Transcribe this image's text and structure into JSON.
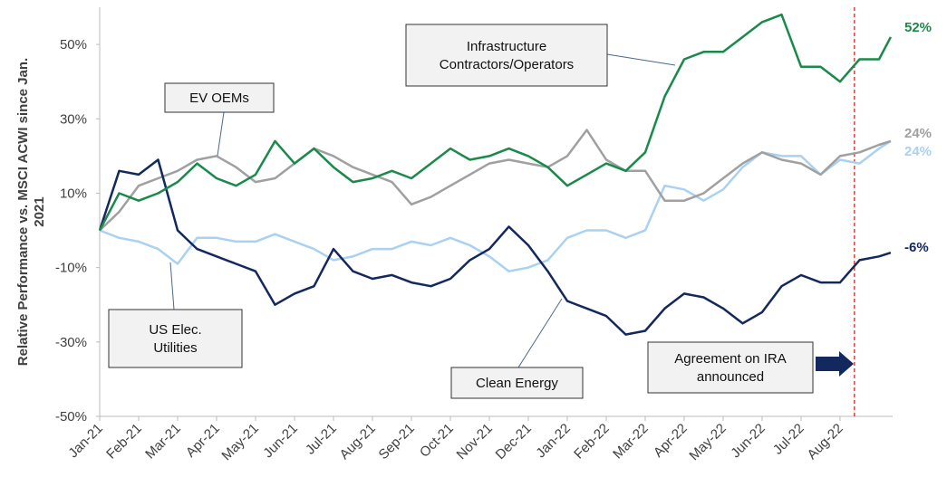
{
  "chart_data": {
    "type": "line",
    "y_label": [
      "Relative Performance vs. MSCI ACWI since Jan.",
      "2021"
    ],
    "x": [
      0,
      0.5,
      1,
      1.5,
      2,
      2.5,
      3,
      3.5,
      4,
      4.5,
      5,
      5.5,
      6,
      6.5,
      7,
      7.5,
      8,
      8.5,
      9,
      9.5,
      10,
      10.5,
      11,
      11.5,
      12,
      12.5,
      13,
      13.5,
      14,
      14.5,
      15,
      15.5,
      16,
      16.5,
      17,
      17.5,
      18,
      18.5,
      19,
      19.5,
      20,
      20.3
    ],
    "xlim": [
      0,
      20.35
    ],
    "xticks": [
      {
        "value": 0,
        "label": "Jan-21"
      },
      {
        "value": 1,
        "label": "Feb-21"
      },
      {
        "value": 2,
        "label": "Mar-21"
      },
      {
        "value": 3,
        "label": "Apr-21"
      },
      {
        "value": 4,
        "label": "May-21"
      },
      {
        "value": 5,
        "label": "Jun-21"
      },
      {
        "value": 6,
        "label": "Jul-21"
      },
      {
        "value": 7,
        "label": "Aug-21"
      },
      {
        "value": 8,
        "label": "Sep-21"
      },
      {
        "value": 9,
        "label": "Oct-21"
      },
      {
        "value": 10,
        "label": "Nov-21"
      },
      {
        "value": 11,
        "label": "Dec-21"
      },
      {
        "value": 12,
        "label": "Jan-22"
      },
      {
        "value": 13,
        "label": "Feb-22"
      },
      {
        "value": 14,
        "label": "Mar-22"
      },
      {
        "value": 15,
        "label": "Apr-22"
      },
      {
        "value": 16,
        "label": "May-22"
      },
      {
        "value": 17,
        "label": "Jun-22"
      },
      {
        "value": 18,
        "label": "Jul-22"
      },
      {
        "value": 19,
        "label": "Aug-22"
      }
    ],
    "ylim": [
      -50,
      60
    ],
    "yticks": [
      {
        "value": 50,
        "label": "50%"
      },
      {
        "value": 30,
        "label": "30%"
      },
      {
        "value": 10,
        "label": "10%"
      },
      {
        "value": -10,
        "label": "-10%"
      },
      {
        "value": -30,
        "label": "-30%"
      },
      {
        "value": -50,
        "label": "-50%"
      }
    ],
    "grid": false,
    "series": [
      {
        "name": "Infrastructure Contractors/Operators",
        "color": "#1a8a4a",
        "last_label": "52%",
        "values": [
          0,
          10,
          8,
          10,
          13,
          18,
          14,
          12,
          15,
          24,
          18,
          22,
          17,
          13,
          14,
          16,
          14,
          18,
          22,
          19,
          20,
          22,
          20,
          17,
          12,
          15,
          18,
          16,
          21,
          36,
          46,
          48,
          48,
          52,
          56,
          58,
          44,
          44,
          40,
          46,
          46,
          52
        ]
      },
      {
        "name": "EV OEMs",
        "color": "#a0a0a0",
        "last_label": "24%",
        "values": [
          0,
          5,
          12,
          14,
          16,
          19,
          20,
          17,
          13,
          14,
          18,
          22,
          20,
          17,
          15,
          13,
          7,
          9,
          12,
          15,
          18,
          19,
          18,
          17,
          20,
          27,
          19,
          16,
          16,
          8,
          8,
          10,
          14,
          18,
          21,
          19,
          18,
          15,
          20,
          21,
          23,
          24
        ]
      },
      {
        "name": "US Elec. Utilities",
        "color": "#a9d2f0",
        "last_label": "24%",
        "values": [
          0,
          -2,
          -3,
          -5,
          -9,
          -2,
          -2,
          -3,
          -3,
          -1,
          -3,
          -5,
          -8,
          -7,
          -5,
          -5,
          -3,
          -4,
          -2,
          -4,
          -7,
          -11,
          -10,
          -8,
          -2,
          0,
          0,
          -2,
          0,
          12,
          11,
          8,
          11,
          17,
          21,
          20,
          20,
          15,
          19,
          18,
          22,
          24
        ]
      },
      {
        "name": "Clean Energy",
        "color": "#13295e",
        "last_label": "-6%",
        "values": [
          0,
          16,
          15,
          19,
          0,
          -5,
          -7,
          -9,
          -11,
          -20,
          -17,
          -15,
          -5,
          -11,
          -13,
          -12,
          -14,
          -15,
          -13,
          -8,
          -5,
          1,
          -4,
          -11,
          -19,
          -21,
          -23,
          -28,
          -27,
          -21,
          -17,
          -18,
          -21,
          -25,
          -22,
          -15,
          -12,
          -14,
          -14,
          -8,
          -7,
          -6
        ]
      }
    ],
    "annotations": [
      {
        "lines": [
          "Infrastructure",
          "Contractors/Operators"
        ]
      },
      {
        "lines": [
          "EV OEMs"
        ]
      },
      {
        "lines": [
          "US Elec.",
          "Utilities"
        ]
      },
      {
        "lines": [
          "Clean Energy"
        ]
      },
      {
        "lines": [
          "Agreement on IRA",
          "announced"
        ]
      }
    ],
    "event_line": {
      "x": 19.37,
      "color": "#e02020"
    }
  }
}
